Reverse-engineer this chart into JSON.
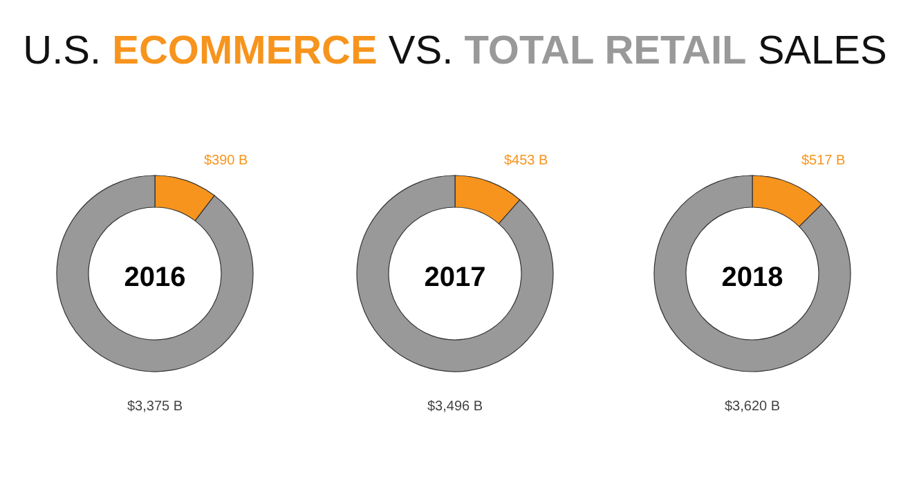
{
  "chart_data": [
    {
      "type": "other",
      "title": "U.S. ECOMMERCE VS. TOTAL RETAIL SALES"
    },
    {
      "type": "donut",
      "title": "2016",
      "categories": [
        null,
        null
      ],
      "values": [
        390,
        3375
      ],
      "colors": [
        "#f7941d",
        "#999999"
      ],
      "value_labels": [
        "$390 B",
        "$3,375 B"
      ]
    },
    {
      "type": "donut",
      "title": "2017",
      "categories": [
        null,
        null
      ],
      "values": [
        453,
        3496
      ],
      "colors": [
        "#f7941d",
        "#999999"
      ],
      "value_labels": [
        "$453 B",
        "$3,496 B"
      ]
    },
    {
      "type": "donut",
      "title": "2018",
      "categories": [
        null,
        null
      ],
      "values": [
        517,
        3620
      ],
      "colors": [
        "#f7941d",
        "#999999"
      ],
      "value_labels": [
        "$517 B",
        "$3,620 B"
      ]
    }
  ]
}
